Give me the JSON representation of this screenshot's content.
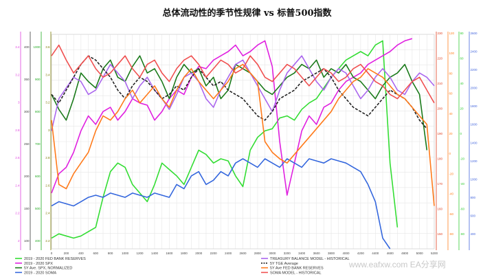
{
  "title": "总体流动性的季节性规律 vs 标普500指数",
  "watermark": "www.eafxw.com EA分享网",
  "chart_data": {
    "type": "line",
    "grid": true,
    "legend_position": "bottom",
    "x": {
      "min": 0,
      "max": 5200,
      "step": 100,
      "labels": [
        "0",
        "200",
        "400",
        "600",
        "800",
        "1000",
        "1200",
        "1400",
        "1600",
        "1800",
        "2000",
        "2200",
        "2400",
        "2600",
        "2800",
        "3000",
        "3200",
        "3400",
        "3600",
        "3800",
        "4000",
        "4200",
        "4400",
        "4600",
        "4800",
        "5000",
        "5200"
      ]
    },
    "left_axes": [
      {
        "color": "#e040e0",
        "labels": [
          "3.4",
          "3.2",
          "3",
          "2.8",
          "2.6",
          "2.4",
          "2.2",
          "2"
        ]
      },
      {
        "color": "#3c3c3c",
        "labels": [
          "400",
          "350",
          "300",
          "250",
          "200",
          "150",
          "100"
        ]
      },
      {
        "color": "#22aa22",
        "labels": [
          "1000",
          "900",
          "800",
          "700",
          "600",
          "500",
          "400"
        ]
      },
      {
        "color": "#7a7a00",
        "labels": [
          "3.6",
          "3.4",
          "3.2",
          "3",
          "2.8",
          "2.6",
          "2.4",
          "2.2"
        ]
      }
    ],
    "right_axes": [
      {
        "color": "#e04020",
        "labels": [
          "230",
          "220",
          "210",
          "200",
          "190",
          "180",
          "170",
          "160",
          "150"
        ]
      },
      {
        "color": "#ff8020",
        "labels": [
          "120",
          "100",
          "80",
          "60",
          "40",
          "20",
          "0",
          "-20",
          "-40",
          "-60",
          "-80"
        ]
      },
      {
        "color": "#33cc33",
        "labels": [
          "80",
          "60",
          "40",
          "20",
          "0",
          "-20",
          "-40",
          "-60",
          "-80"
        ]
      },
      {
        "color": "#4466dd",
        "labels": [
          "2600",
          "2400",
          "2200",
          "2000",
          "1800",
          "1600",
          "1400",
          "1200",
          "1000",
          "800",
          "600",
          "400"
        ]
      }
    ],
    "series": [
      {
        "name": "2019 - 2020 FED BANK RESERVES",
        "color": "#33dd33",
        "style": "solid",
        "y": [
          0.05,
          0.07,
          0.06,
          0.05,
          0.06,
          0.08,
          0.1,
          0.24,
          0.36,
          0.4,
          0.38,
          0.3,
          0.26,
          0.22,
          0.3,
          0.4,
          0.37,
          0.34,
          0.3,
          0.38,
          0.46,
          0.44,
          0.4,
          0.42,
          0.41,
          0.34,
          0.29,
          0.46,
          0.52,
          0.55,
          0.56,
          0.61,
          0.62,
          0.6,
          0.65,
          0.68,
          0.7,
          0.75,
          0.8,
          0.84,
          0.88,
          0.9,
          0.92,
          0.9,
          0.95,
          0.97,
          0.4,
          0.1,
          null,
          null,
          null,
          null,
          null
        ]
      },
      {
        "name": "2019 - 2020 SPX",
        "color": "#e020e0",
        "style": "solid",
        "y": [
          0.26,
          0.35,
          0.38,
          0.45,
          0.55,
          0.62,
          0.58,
          0.64,
          0.66,
          0.6,
          0.64,
          0.7,
          0.68,
          0.67,
          0.6,
          0.64,
          0.7,
          0.74,
          0.72,
          0.8,
          0.85,
          0.84,
          0.88,
          0.9,
          0.92,
          0.95,
          0.9,
          0.92,
          0.95,
          0.97,
          0.85,
          0.5,
          0.25,
          0.4,
          0.55,
          0.62,
          0.58,
          0.66,
          0.68,
          0.74,
          0.78,
          0.8,
          0.82,
          0.86,
          0.88,
          0.9,
          0.92,
          0.95,
          0.97,
          0.98,
          null,
          null,
          null
        ]
      },
      {
        "name": "5Y Ave. SPX, NORMALIZED",
        "color": "#1a7a1a",
        "style": "solid",
        "y": [
          0.72,
          0.65,
          0.6,
          0.7,
          0.82,
          0.78,
          0.75,
          0.84,
          0.88,
          0.8,
          0.78,
          0.85,
          0.9,
          0.82,
          0.84,
          0.78,
          0.7,
          0.8,
          0.86,
          0.82,
          0.84,
          0.76,
          0.8,
          0.7,
          0.74,
          0.86,
          0.84,
          0.82,
          0.78,
          0.74,
          0.72,
          0.76,
          0.8,
          0.82,
          0.86,
          0.84,
          0.88,
          0.8,
          0.84,
          0.82,
          0.86,
          0.8,
          0.78,
          0.74,
          0.7,
          0.76,
          0.8,
          0.82,
          0.86,
          0.78,
          0.72,
          0.46,
          null
        ]
      },
      {
        "name": "2019 - 2020 SOMA",
        "color": "#3366dd",
        "style": "solid",
        "y": [
          0.2,
          0.22,
          0.21,
          0.2,
          0.22,
          0.24,
          0.25,
          0.24,
          0.26,
          0.25,
          0.24,
          0.26,
          0.25,
          0.24,
          0.26,
          0.25,
          0.24,
          0.3,
          0.28,
          0.34,
          0.36,
          0.3,
          0.32,
          0.36,
          0.34,
          0.4,
          0.42,
          0.4,
          0.38,
          0.42,
          0.4,
          0.38,
          0.42,
          0.4,
          0.38,
          0.42,
          0.41,
          0.4,
          0.42,
          0.41,
          0.4,
          0.38,
          0.36,
          0.3,
          0.22,
          0.05,
          0.0,
          null,
          null,
          null,
          null,
          null,
          null
        ]
      },
      {
        "name": "TREASURY BALANCE MODEL - HISTORICAL",
        "color": "#aa66ee",
        "style": "solid",
        "y": [
          0.55,
          0.7,
          0.75,
          0.8,
          0.78,
          0.72,
          0.74,
          0.8,
          0.86,
          0.82,
          0.78,
          0.7,
          0.76,
          0.8,
          0.74,
          0.7,
          0.65,
          0.72,
          0.8,
          0.82,
          0.78,
          0.7,
          0.66,
          0.74,
          0.8,
          0.86,
          0.88,
          0.82,
          0.76,
          0.7,
          0.64,
          0.74,
          0.82,
          0.86,
          0.9,
          0.84,
          0.78,
          0.74,
          0.8,
          0.84,
          0.82,
          0.76,
          0.7,
          0.74,
          0.8,
          0.84,
          0.8,
          0.74,
          0.72,
          0.78,
          0.82,
          0.8,
          0.76
        ]
      },
      {
        "name": "5Y TGE Average",
        "color": "#222222",
        "style": "dashed",
        "y": [
          0.72,
          0.68,
          0.74,
          0.8,
          0.86,
          0.9,
          0.88,
          0.84,
          0.8,
          0.74,
          0.7,
          0.76,
          0.8,
          0.78,
          0.74,
          0.7,
          0.72,
          0.76,
          0.74,
          0.8,
          0.84,
          0.8,
          0.76,
          0.78,
          0.74,
          0.72,
          0.7,
          0.66,
          0.62,
          0.6,
          0.64,
          0.7,
          0.72,
          0.74,
          0.78,
          0.8,
          0.82,
          0.84,
          0.8,
          0.74,
          0.7,
          0.66,
          0.64,
          0.62,
          0.66,
          0.7,
          0.74,
          0.72,
          0.7,
          0.66,
          0.6,
          0.56,
          null
        ]
      },
      {
        "name": "5Y Ave FED BANK RESERVES",
        "color": "#ff7a1a",
        "style": "solid",
        "y": [
          0.6,
          0.3,
          0.28,
          0.35,
          0.4,
          0.45,
          0.55,
          0.62,
          0.6,
          0.64,
          0.7,
          0.74,
          0.68,
          0.72,
          0.76,
          0.7,
          0.66,
          0.74,
          0.8,
          0.84,
          0.78,
          0.74,
          0.7,
          0.74,
          0.78,
          0.84,
          0.86,
          0.82,
          0.78,
          0.5,
          0.45,
          0.42,
          0.4,
          0.44,
          0.48,
          0.52,
          0.56,
          0.6,
          0.64,
          0.7,
          0.74,
          0.78,
          0.8,
          0.84,
          0.82,
          0.8,
          0.76,
          0.72,
          0.7,
          0.66,
          0.62,
          0.58,
          0.2
        ]
      },
      {
        "name": "SOMA MODEL - HISTORICAL",
        "color": "#f05050",
        "style": "solid",
        "y": [
          0.9,
          0.95,
          0.88,
          0.82,
          0.86,
          0.9,
          0.84,
          0.8,
          0.82,
          0.86,
          0.9,
          0.84,
          0.8,
          0.86,
          0.88,
          0.82,
          0.78,
          0.84,
          0.88,
          0.9,
          0.86,
          0.8,
          0.84,
          0.88,
          0.86,
          0.82,
          0.84,
          0.9,
          0.86,
          0.8,
          0.78,
          0.82,
          0.86,
          0.84,
          0.8,
          0.76,
          0.8,
          0.84,
          0.82,
          0.78,
          0.8,
          0.84,
          0.86,
          0.82,
          0.78,
          0.76,
          0.72,
          0.7,
          0.74,
          0.78,
          0.8,
          0.74,
          0.68
        ]
      }
    ]
  }
}
